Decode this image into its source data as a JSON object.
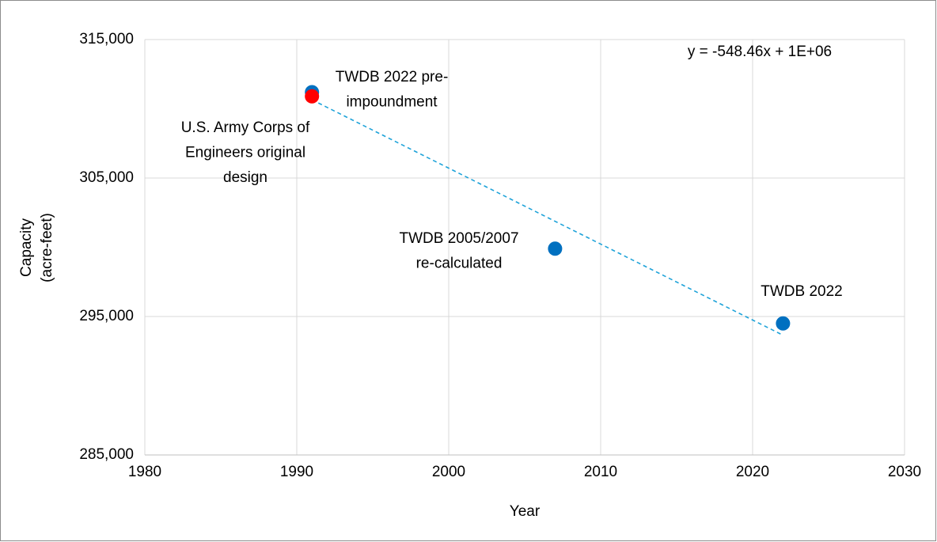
{
  "chart_data": {
    "type": "scatter",
    "xlabel": "Year",
    "ylabel": [
      "Capacity",
      "(acre-feet)"
    ],
    "xlim": [
      1980,
      2030
    ],
    "ylim": [
      285000,
      315000
    ],
    "xticks": [
      1980,
      1990,
      2000,
      2010,
      2020,
      2030
    ],
    "yticks": [
      {
        "value": 285000,
        "label": "285,000"
      },
      {
        "value": 295000,
        "label": "295,000"
      },
      {
        "value": 305000,
        "label": "305,000"
      },
      {
        "value": 315000,
        "label": "315,000"
      }
    ],
    "grid": true,
    "points": [
      {
        "label": [
          "TWDB 2022 pre-",
          "impoundment"
        ],
        "x": 1991,
        "y": 311200,
        "color": "#0070c0"
      },
      {
        "label": [
          "U.S. Army Corps of",
          "Engineers original",
          "design"
        ],
        "x": 1991,
        "y": 310900,
        "color": "#ff0000"
      },
      {
        "label": [
          "TWDB 2005/2007",
          "re-calculated"
        ],
        "x": 2007,
        "y": 299900,
        "color": "#0070c0"
      },
      {
        "label": [
          "TWDB 2022"
        ],
        "x": 2022,
        "y": 294500,
        "color": "#0070c0"
      }
    ],
    "trendline": {
      "label": "y = -548.46x + 1E+06",
      "x": [
        1991,
        2022
      ],
      "values": [
        310650,
        293650
      ],
      "color": "#1fa3d9"
    }
  }
}
